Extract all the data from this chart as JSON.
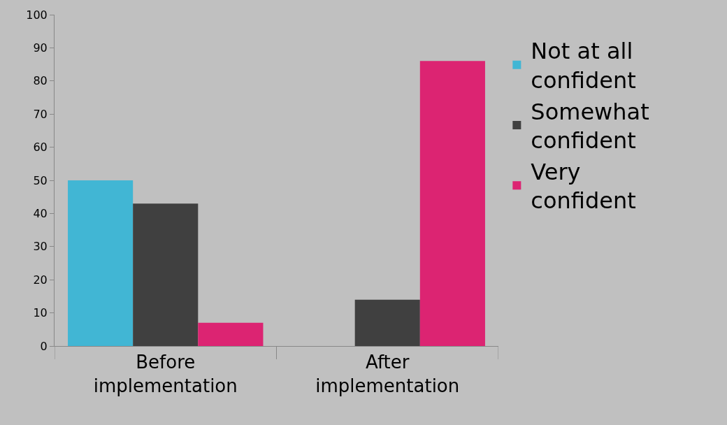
{
  "chart_data": {
    "type": "bar",
    "categories": [
      "Before implementation",
      "After implementation"
    ],
    "series": [
      {
        "name": "Not at all confident",
        "color": "#41b6d4",
        "values": [
          50,
          0
        ]
      },
      {
        "name": "Somewhat confident",
        "color": "#404040",
        "values": [
          43,
          14
        ]
      },
      {
        "name": "Very confident",
        "color": "#dc2472",
        "values": [
          7,
          86
        ]
      }
    ],
    "ylim": [
      0,
      100
    ],
    "yticks": [
      0,
      10,
      20,
      30,
      40,
      50,
      60,
      70,
      80,
      90,
      100
    ],
    "grid": false,
    "legend": "right"
  }
}
